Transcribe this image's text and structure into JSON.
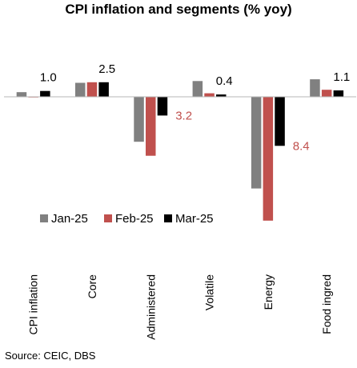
{
  "chart_data": {
    "type": "bar",
    "title": "CPI inflation and segments (% yoy)",
    "source": "Source: CEIC, DBS",
    "categories": [
      "CPI inflation",
      "Core",
      "Administered",
      "Volatile",
      "Energy",
      "Food ingred"
    ],
    "series": [
      {
        "name": "Jan-25",
        "color": "#808080",
        "values": [
          0.8,
          2.4,
          -7.7,
          2.7,
          -15.7,
          3.0
        ]
      },
      {
        "name": "Feb-25",
        "color": "#c0504d",
        "values": [
          -0.1,
          2.5,
          -10.1,
          0.6,
          -21.2,
          1.2
        ]
      },
      {
        "name": "Mar-25",
        "color": "#000000",
        "values": [
          1.0,
          2.5,
          -3.2,
          0.4,
          -8.4,
          1.1
        ]
      }
    ],
    "data_labels": [
      {
        "category": "CPI inflation",
        "text": "1.0",
        "color": "#000000",
        "position": "above"
      },
      {
        "category": "Core",
        "text": "2.5",
        "color": "#000000",
        "position": "above"
      },
      {
        "category": "Administered",
        "text": "3.2",
        "color": "#c0504d",
        "position": "right"
      },
      {
        "category": "Volatile",
        "text": "0.4",
        "color": "#000000",
        "position": "above"
      },
      {
        "category": "Energy",
        "text": "8.4",
        "color": "#c0504d",
        "position": "right"
      },
      {
        "category": "Food ingred",
        "text": "1.1",
        "color": "#000000",
        "position": "above"
      }
    ],
    "ylim": [
      -22,
      6
    ],
    "grid": false,
    "legend_position": "inside-lower-left"
  }
}
